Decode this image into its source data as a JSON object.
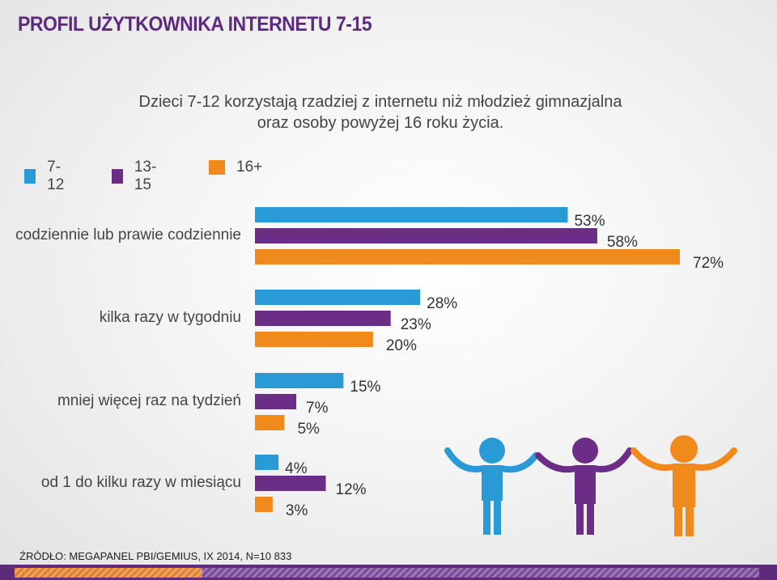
{
  "title": "PROFIL UŻYTKOWNIKA INTERNETU 7-15",
  "subtitle_line1": "Dzieci 7-12 korzystają rzadziej z internetu niż młodzież gimnazjalna",
  "subtitle_line2": "oraz osoby powyżej 16 roku życia.",
  "source": "ŹRÓDŁO: MEGAPANEL PBI/GEMIUS, IX 2014, N=10 833",
  "colors": {
    "s1": "#2a9ad6",
    "s2": "#6c2d86",
    "s3": "#f08a1c",
    "footer": "#5d2a7e"
  },
  "icons": [
    "child-blue-icon",
    "child-purple-icon",
    "child-orange-icon"
  ],
  "chart_data": {
    "type": "bar",
    "orientation": "horizontal",
    "title": "PROFIL UŻYTKOWNIKA INTERNETU 7-15",
    "categories": [
      "codziennie lub prawie codziennie",
      "kilka razy w tygodniu",
      "mniej więcej raz na tydzień",
      "od 1 do kilku razy w miesiącu"
    ],
    "series": [
      {
        "name": "7-12",
        "values": [
          53,
          28,
          15,
          4
        ]
      },
      {
        "name": "13-15",
        "values": [
          58,
          23,
          7,
          12
        ]
      },
      {
        "name": "16+",
        "values": [
          72,
          20,
          5,
          3
        ]
      }
    ],
    "value_suffix": "%",
    "xlim": [
      0,
      80
    ],
    "grid": false,
    "legend": "top-left"
  }
}
